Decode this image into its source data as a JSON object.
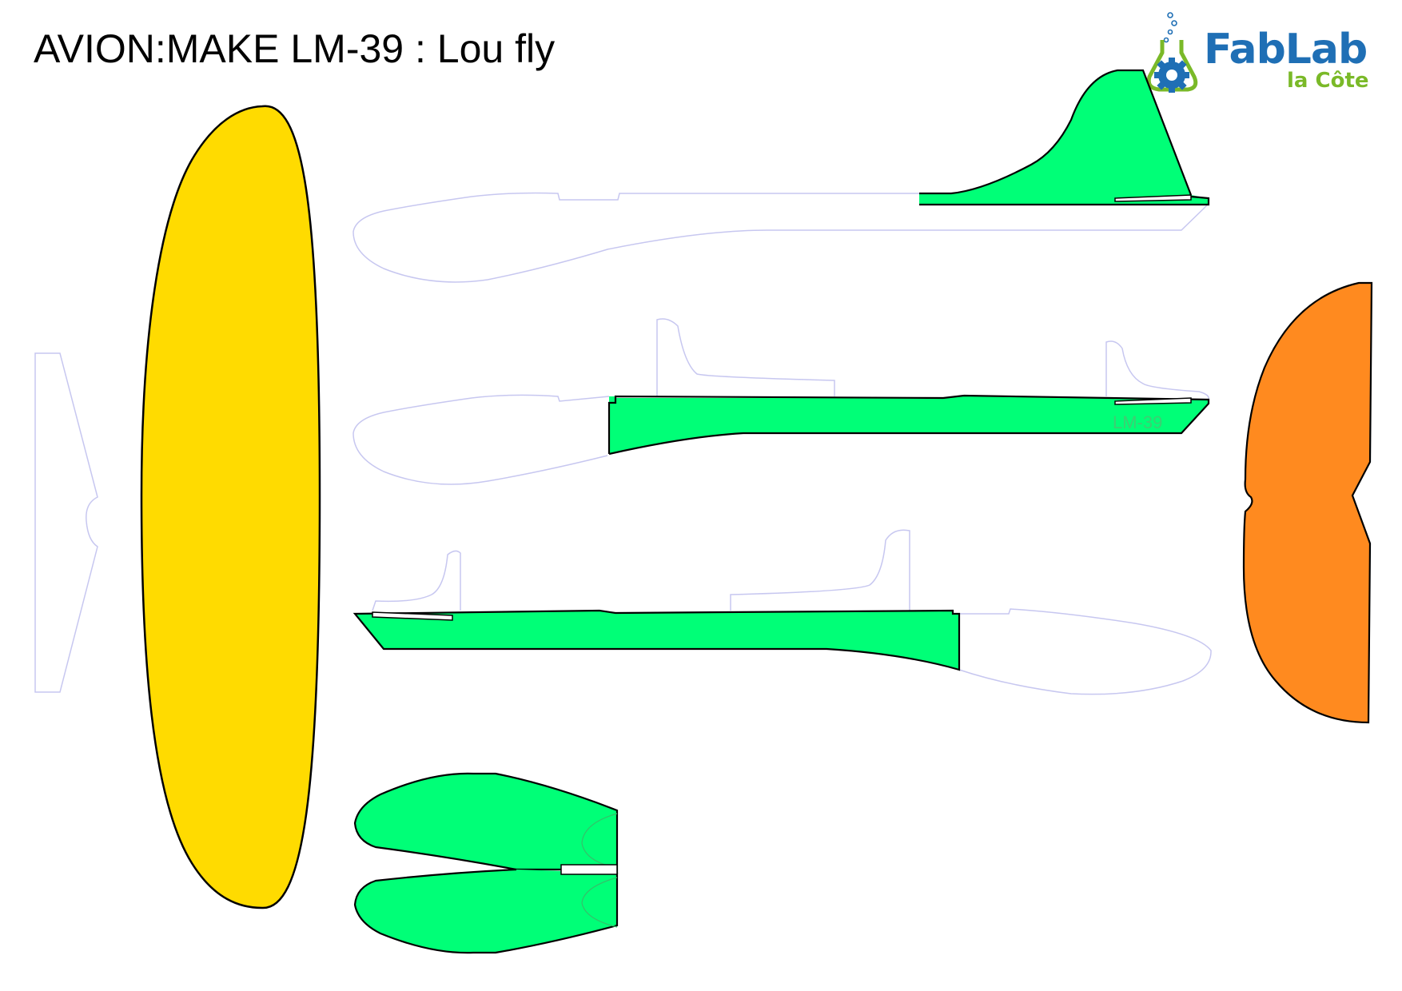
{
  "title": "AVION:MAKE LM-39 : Lou fly",
  "logo": {
    "name": "FabLab",
    "subtitle": "la Côte",
    "brand_blue": "#1f6fb5",
    "brand_green": "#7ab928",
    "icon": "flask-gear-icon"
  },
  "fuselage_mark": "LM-39",
  "colors": {
    "wing": "#ffdb00",
    "body_parts": "#00ff77",
    "stabilizer": "#ff8a1f",
    "outline": "#000000",
    "guide_line": "#c7c7f0",
    "marking": "#3ccf73"
  }
}
